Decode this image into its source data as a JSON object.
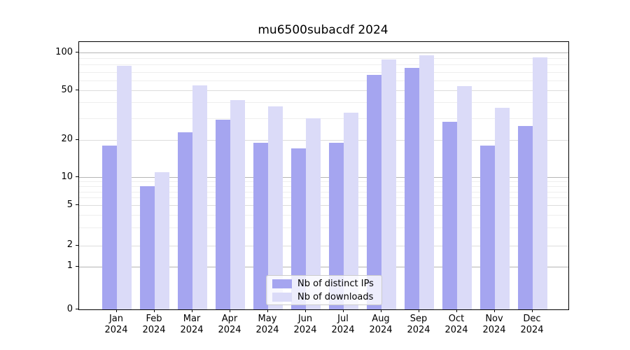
{
  "chart_data": {
    "type": "bar",
    "title": "mu6500subacdf 2024",
    "categories": [
      "Jan 2024",
      "Feb 2024",
      "Mar 2024",
      "Apr 2024",
      "May 2024",
      "Jun 2024",
      "Jul 2024",
      "Aug 2024",
      "Sep 2024",
      "Oct 2024",
      "Nov 2024",
      "Dec 2024"
    ],
    "series": [
      {
        "name": "Nb of distinct IPs",
        "color": "#a5a5f0",
        "values": [
          18,
          8,
          23,
          29,
          19,
          17,
          19,
          66,
          75,
          28,
          18,
          26
        ]
      },
      {
        "name": "Nb of downloads",
        "color": "#dbdbf8",
        "values": [
          78,
          11,
          55,
          42,
          37,
          30,
          33,
          88,
          95,
          54,
          36,
          91
        ]
      }
    ],
    "yscale": "log-like (symlog with 0 baseline)",
    "yticks": [
      0,
      1,
      2,
      5,
      10,
      20,
      50,
      100
    ],
    "ytick_labels": [
      "0",
      "1",
      "2",
      "5",
      "10",
      "20",
      "50",
      "100"
    ],
    "minor_gridline_values": [
      3,
      4,
      6,
      7,
      8,
      9,
      30,
      40,
      60,
      70,
      80,
      90
    ],
    "ylim": [
      0,
      110
    ],
    "grid": true,
    "legend_position": "lower center"
  }
}
